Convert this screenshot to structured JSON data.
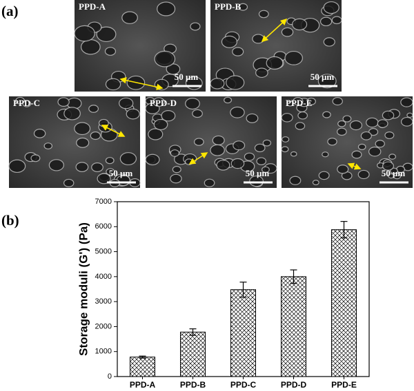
{
  "panel_labels": [
    "(a)",
    "(b)"
  ],
  "images": [
    {
      "label": "PPD-A",
      "scale": "50 μm"
    },
    {
      "label": "PPD-B",
      "scale": "50 μm"
    },
    {
      "label": "PPD-C",
      "scale": "50 μm"
    },
    {
      "label": "PPD-D",
      "scale": "50 μm"
    },
    {
      "label": "PPD-E",
      "scale": "50 μm"
    }
  ],
  "chart_data": {
    "type": "bar",
    "y_label": "Storage moduli (G') (Pa)",
    "categories": [
      "PPD-A",
      "PPD-B",
      "PPD-C",
      "PPD-D",
      "PPD-E"
    ],
    "values": [
      780,
      1780,
      3480,
      4000,
      5880
    ],
    "errors": [
      40,
      130,
      300,
      270,
      330
    ],
    "color": "#000000",
    "ylim": [
      0,
      7000
    ],
    "yticks": [
      0,
      1000,
      2000,
      3000,
      4000,
      5000,
      6000,
      7000
    ]
  }
}
